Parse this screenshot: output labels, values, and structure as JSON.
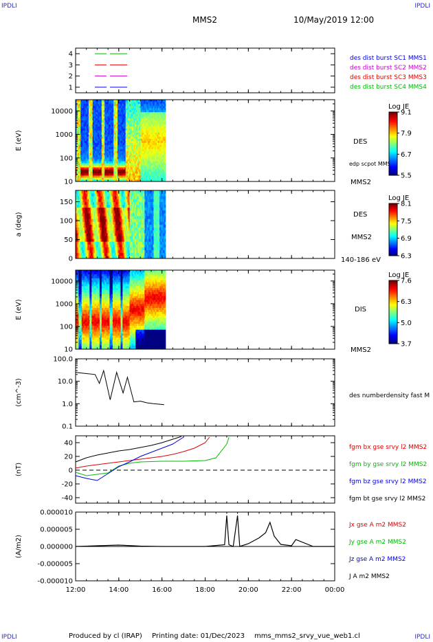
{
  "corners": {
    "tl": "IPDLI",
    "tr": "IPDLI",
    "bl": "IPDLI",
    "br": "IPDLI"
  },
  "header": {
    "spacecraft": "MMS2",
    "datetime": "10/May/2019 12:00"
  },
  "footer": {
    "producer": "Produced by cl (IRAP)",
    "printing": "Printing date: 01/Dec/2023",
    "file": "mms_mms2_srvy_vue_web1.cl"
  },
  "time_axis": {
    "ticks": [
      "12:00",
      "14:00",
      "16:00",
      "18:00",
      "20:00",
      "22:00",
      "00:00"
    ]
  },
  "colors": {
    "red": "#dd0000",
    "green": "#00bb00",
    "blue": "#0000dd",
    "magenta": "#cc00cc",
    "black": "#000000",
    "label_blue": "#0000cc"
  },
  "chart_data": [
    {
      "type": "line",
      "id": "sc_indicator",
      "ylim": [
        0.5,
        4.5
      ],
      "yticks": [
        "1",
        "2",
        "3",
        "4"
      ],
      "legend": [
        "des dist burst SC1 MMS1",
        "des dist burst SC2 MMS2",
        "des dist burst SC3 MMS3",
        "des dist burst SC4 MMS4"
      ],
      "series": [
        {
          "color": "green",
          "y": 4
        },
        {
          "color": "red",
          "y": 3
        },
        {
          "color": "magenta",
          "y": 2
        },
        {
          "color": "blue",
          "y": 1
        }
      ]
    },
    {
      "type": "heatmap",
      "id": "des_energy",
      "ylabel": "E (eV)",
      "yscale": "log",
      "ylim": [
        10,
        30000
      ],
      "yticks": [
        "10",
        "100",
        "1000",
        "10000"
      ],
      "right_labels": [
        "DES",
        "MMS2"
      ],
      "overlay_label": "edp scpot MMS2",
      "colorbar": {
        "title": "Log JE",
        "ticks": [
          "9.1",
          "7.9",
          "6.7",
          "5.5"
        ],
        "range": [
          5.5,
          9.1
        ]
      },
      "data_time_end": "16:10"
    },
    {
      "type": "heatmap",
      "id": "des_pitch",
      "ylabel": "a (deg)",
      "ylim": [
        0,
        180
      ],
      "yticks": [
        "0",
        "50",
        "100",
        "150"
      ],
      "right_labels": [
        "DES",
        "MMS2",
        "140-186 eV"
      ],
      "colorbar": {
        "title": "Log JE",
        "ticks": [
          "8.1",
          "7.5",
          "6.9",
          "6.3"
        ],
        "range": [
          6.3,
          8.1
        ]
      },
      "data_time_end": "16:10"
    },
    {
      "type": "heatmap",
      "id": "dis_energy",
      "ylabel": "E (eV)",
      "yscale": "log",
      "ylim": [
        10,
        30000
      ],
      "yticks": [
        "10",
        "100",
        "1000",
        "10000"
      ],
      "right_labels": [
        "DIS",
        "MMS2"
      ],
      "colorbar": {
        "title": "Log JE",
        "ticks": [
          "7.6",
          "6.3",
          "5.0",
          "3.7"
        ],
        "range": [
          3.7,
          7.6
        ]
      },
      "data_time_end": "16:10"
    },
    {
      "type": "line",
      "id": "density",
      "ylabel": "(cm^-3)",
      "yscale": "log",
      "ylim": [
        0.1,
        100
      ],
      "yticks": [
        "0.1",
        "1.0",
        "10.0",
        "100.0"
      ],
      "legend": [
        "des numberdensity fast M"
      ],
      "series": [
        {
          "name": "des numberdensity fast M",
          "color": "black",
          "x": [
            12.0,
            12.5,
            12.9,
            13.1,
            13.3,
            13.6,
            13.9,
            14.2,
            14.4,
            14.7,
            15.0,
            15.3,
            15.6,
            15.9,
            16.1
          ],
          "y": [
            25,
            22,
            20,
            8,
            30,
            1.5,
            25,
            3,
            15,
            1.2,
            1.3,
            1.1,
            1.0,
            0.95,
            0.9
          ]
        }
      ]
    },
    {
      "type": "line",
      "id": "fgm",
      "ylabel": "(nT)",
      "ylim": [
        -48,
        50
      ],
      "yticks": [
        "-40",
        "-20",
        "0",
        "20",
        "40"
      ],
      "legend": [
        "fgm bx gse srvy l2 MMS2",
        "fgm by gse srvy l2 MMS2",
        "fgm bz gse srvy l2 MMS2",
        "fgm bt gse srvy l2 MMS2"
      ],
      "series": [
        {
          "name": "fgm bx gse srvy l2 MMS2",
          "color": "red",
          "x": [
            12.0,
            12.5,
            13.0,
            13.5,
            14.0,
            14.5,
            15.0,
            15.5,
            16.0,
            16.5,
            17.0,
            17.5,
            18.0,
            18.2
          ],
          "y": [
            3,
            6,
            8,
            10,
            12,
            14,
            16,
            18,
            20,
            23,
            27,
            32,
            40,
            48
          ]
        },
        {
          "name": "fgm by gse srvy l2 MMS2",
          "color": "green",
          "x": [
            12.0,
            12.5,
            13.0,
            13.5,
            14.0,
            14.5,
            15.0,
            16.0,
            17.0,
            18.0,
            18.5,
            19.0,
            19.1
          ],
          "y": [
            -3,
            -8,
            -6,
            -4,
            6,
            10,
            12,
            13,
            13,
            14,
            18,
            38,
            48
          ]
        },
        {
          "name": "fgm bz gse srvy l2 MMS2",
          "color": "blue",
          "x": [
            12.0,
            12.5,
            13.0,
            13.5,
            14.0,
            14.5,
            15.0,
            15.5,
            16.0,
            16.5,
            17.0
          ],
          "y": [
            -8,
            -12,
            -15,
            -5,
            5,
            12,
            20,
            26,
            32,
            38,
            48
          ]
        },
        {
          "name": "fgm bt gse srvy l2 MMS2",
          "color": "black",
          "x": [
            12.0,
            12.5,
            13.0,
            13.5,
            14.0,
            14.5,
            15.0,
            15.5,
            16.0,
            16.5,
            16.9
          ],
          "y": [
            12,
            18,
            22,
            25,
            28,
            30,
            33,
            36,
            40,
            45,
            49
          ]
        }
      ]
    },
    {
      "type": "line",
      "id": "current_density",
      "ylabel": "(A/m2)",
      "ylim": [
        -1e-05,
        1e-05
      ],
      "yticks": [
        "-0.000010",
        "-0.000005",
        "0.000000",
        "0.000005",
        "0.000010"
      ],
      "legend": [
        "Jx gse A m2 MMS2",
        "Jy gse A m2 MMS2",
        "Jz gse A m2 MMS2",
        "J A m2 MMS2"
      ],
      "series": [
        {
          "name": "J A m2 MMS2",
          "color": "black",
          "x": [
            12.0,
            13.0,
            14.0,
            15.0,
            16.0,
            17.0,
            18.0,
            18.9,
            19.0,
            19.1,
            19.3,
            19.5,
            19.6,
            20.0,
            20.5,
            20.8,
            21.0,
            21.2,
            21.5,
            22.0,
            22.2,
            23.0,
            24.0
          ],
          "y": [
            0,
            2e-07,
            4e-07,
            1e-07,
            0,
            0,
            0,
            5e-07,
            9e-06,
            5e-07,
            0,
            9e-06,
            0,
            8e-07,
            2.5e-06,
            4e-06,
            7e-06,
            3e-06,
            6e-07,
            2e-07,
            2e-06,
            0,
            0
          ]
        }
      ]
    }
  ]
}
